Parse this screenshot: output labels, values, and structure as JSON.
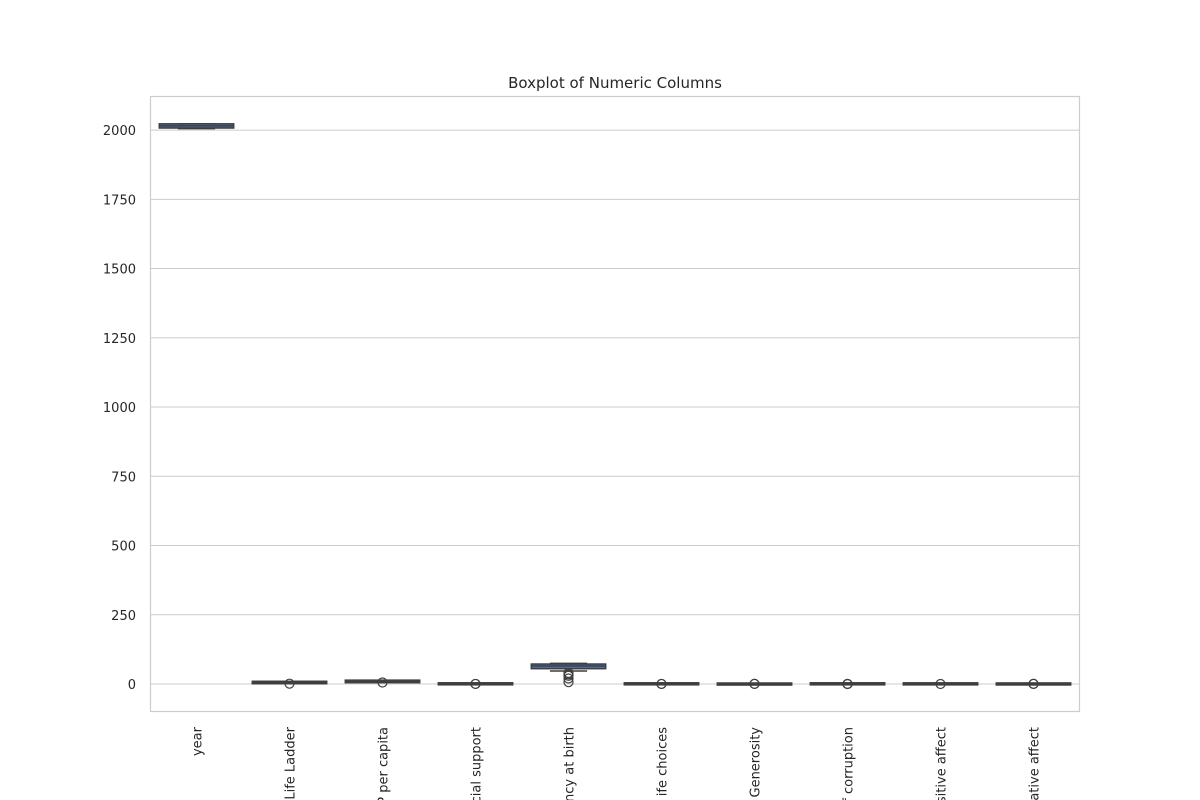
{
  "chart_data": {
    "type": "boxplot",
    "title": "Boxplot of Numeric Columns",
    "categories": [
      "year",
      "Life Ladder",
      "P per capita",
      "cial support",
      "ancy at birth",
      "ife choices",
      "Generosity",
      "f corruption",
      "sitive affect",
      "ative affect"
    ],
    "boxes": [
      {
        "whislo": 2005,
        "q1": 2011,
        "med": 2015,
        "q3": 2019,
        "whishi": 2023,
        "fliers": []
      },
      {
        "whislo": 2.2,
        "q1": 4.6,
        "med": 5.4,
        "q3": 6.3,
        "whishi": 8.0,
        "fliers": [
          1.3
        ]
      },
      {
        "whislo": 7.0,
        "q1": 8.5,
        "med": 9.5,
        "q3": 10.4,
        "whishi": 11.7,
        "fliers": [
          5.5
        ]
      },
      {
        "whislo": 0.45,
        "q1": 0.75,
        "med": 0.83,
        "q3": 0.9,
        "whishi": 0.99,
        "fliers": [
          0.29,
          0.4
        ]
      },
      {
        "whislo": 47,
        "q1": 59,
        "med": 65.1,
        "q3": 68.6,
        "whishi": 74.5,
        "fliers": [
          6.7,
          20,
          30,
          35,
          40
        ]
      },
      {
        "whislo": 0.5,
        "q1": 0.7,
        "med": 0.79,
        "q3": 0.87,
        "whishi": 0.99,
        "fliers": [
          0.23,
          0.35
        ]
      },
      {
        "whislo": -0.34,
        "q1": -0.11,
        "med": -0.02,
        "q3": 0.09,
        "whishi": 0.4,
        "fliers": [
          0.5,
          0.7
        ]
      },
      {
        "whislo": 0.45,
        "q1": 0.69,
        "med": 0.8,
        "q3": 0.87,
        "whishi": 0.98,
        "fliers": [
          0.04,
          0.2,
          0.3
        ]
      },
      {
        "whislo": 0.3,
        "q1": 0.57,
        "med": 0.66,
        "q3": 0.74,
        "whishi": 0.88,
        "fliers": [
          0.18
        ]
      },
      {
        "whislo": 0.08,
        "q1": 0.21,
        "med": 0.26,
        "q3": 0.32,
        "whishi": 0.5,
        "fliers": [
          0.6,
          0.7
        ]
      }
    ],
    "color": "#4c72b0",
    "line_color": "#3f3f3f",
    "ylim": [
      -101,
      2123
    ],
    "yticks": [
      0,
      250,
      500,
      750,
      1000,
      1250,
      1500,
      1750,
      2000
    ],
    "grid": true
  }
}
